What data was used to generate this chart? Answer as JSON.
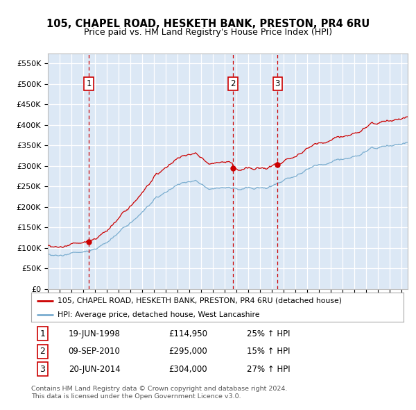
{
  "title": "105, CHAPEL ROAD, HESKETH BANK, PRESTON, PR4 6RU",
  "subtitle": "Price paid vs. HM Land Registry's House Price Index (HPI)",
  "red_label": "105, CHAPEL ROAD, HESKETH BANK, PRESTON, PR4 6RU (detached house)",
  "blue_label": "HPI: Average price, detached house, West Lancashire",
  "footer1": "Contains HM Land Registry data © Crown copyright and database right 2024.",
  "footer2": "This data is licensed under the Open Government Licence v3.0.",
  "sales": [
    {
      "num": 1,
      "date_label": "19-JUN-1998",
      "price_label": "£114,950",
      "hpi_label": "25% ↑ HPI",
      "year": 1998.47,
      "price": 114950
    },
    {
      "num": 2,
      "date_label": "09-SEP-2010",
      "price_label": "£295,000",
      "hpi_label": "15% ↑ HPI",
      "year": 2010.69,
      "price": 295000
    },
    {
      "num": 3,
      "date_label": "20-JUN-2014",
      "price_label": "£304,000",
      "hpi_label": "27% ↑ HPI",
      "year": 2014.47,
      "price": 304000
    }
  ],
  "ylim": [
    0,
    575000
  ],
  "yticks": [
    0,
    50000,
    100000,
    150000,
    200000,
    250000,
    300000,
    350000,
    400000,
    450000,
    500000,
    550000
  ],
  "ytick_labels": [
    "£0",
    "£50K",
    "£100K",
    "£150K",
    "£200K",
    "£250K",
    "£300K",
    "£350K",
    "£400K",
    "£450K",
    "£500K",
    "£550K"
  ],
  "xlim_start": 1995,
  "xlim_end": 2025.5,
  "bg_color": "#dce8f5",
  "grid_color": "#ffffff",
  "red_color": "#cc0000",
  "blue_color": "#7aadcf",
  "dashed_color": "#cc0000"
}
